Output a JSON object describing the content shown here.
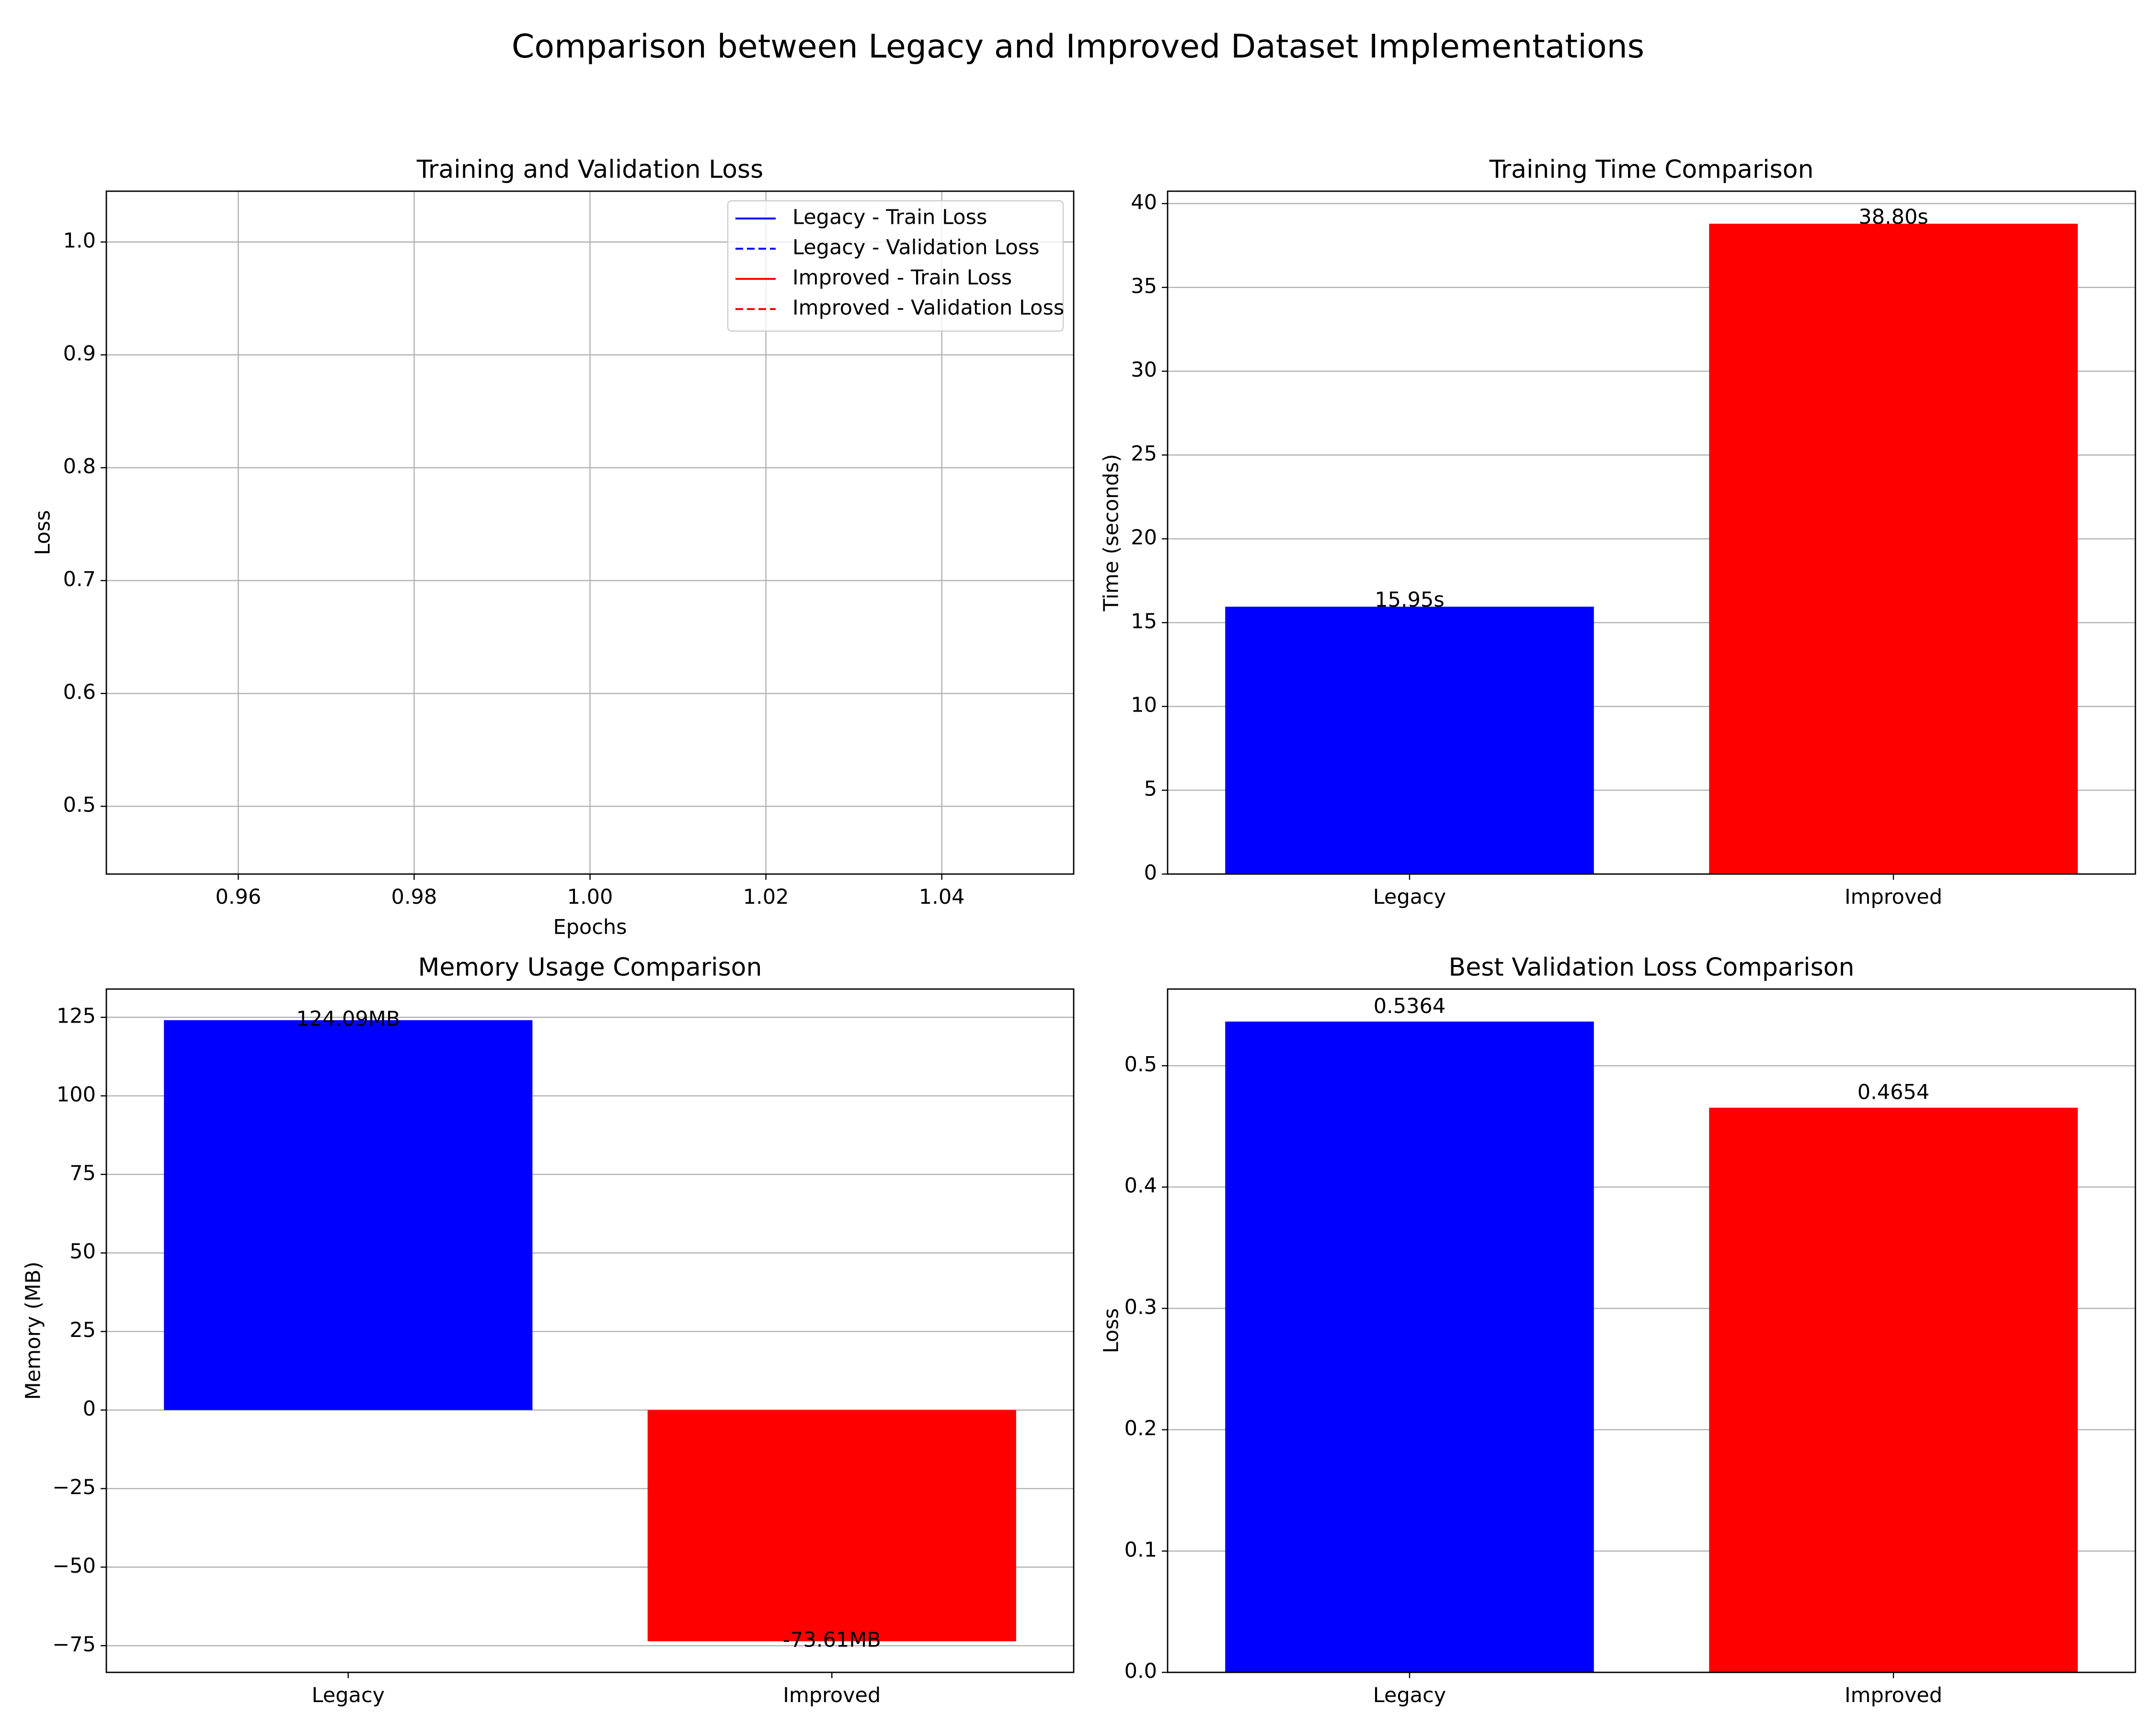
{
  "figure": {
    "suptitle": "Comparison between Legacy and Improved Dataset Implementations"
  },
  "colors": {
    "legacy": "#0000ff",
    "improved": "#ff0000",
    "grid": "#b0b0b0"
  },
  "chart_data": [
    {
      "id": "loss",
      "type": "line",
      "title": "Training and Validation Loss",
      "xlabel": "Epochs",
      "ylabel": "Loss",
      "xlim": [
        0.945,
        1.055
      ],
      "ylim": [
        0.44,
        1.045
      ],
      "xticks": [
        0.96,
        0.98,
        1.0,
        1.02,
        1.04
      ],
      "xtick_labels": [
        "0.96",
        "0.98",
        "1.00",
        "1.02",
        "1.04"
      ],
      "yticks": [
        0.5,
        0.6,
        0.7,
        0.8,
        0.9,
        1.0
      ],
      "ytick_labels": [
        "0.5",
        "0.6",
        "0.7",
        "0.8",
        "0.9",
        "1.0"
      ],
      "grid": true,
      "legend_position": "top-right",
      "series": [
        {
          "name": "Legacy - Train Loss",
          "color": "#0000ff",
          "style": "solid",
          "x": [],
          "y": []
        },
        {
          "name": "Legacy - Validation Loss",
          "color": "#0000ff",
          "style": "dashed",
          "x": [],
          "y": []
        },
        {
          "name": "Improved - Train Loss",
          "color": "#ff0000",
          "style": "solid",
          "x": [],
          "y": []
        },
        {
          "name": "Improved - Validation Loss",
          "color": "#ff0000",
          "style": "dashed",
          "x": [],
          "y": []
        }
      ]
    },
    {
      "id": "time",
      "type": "bar",
      "title": "Training Time Comparison",
      "xlabel": "",
      "ylabel": "Time (seconds)",
      "categories": [
        "Legacy",
        "Improved"
      ],
      "values": [
        15.95,
        38.8
      ],
      "value_labels": [
        "15.95s",
        "38.80s"
      ],
      "label_placement": "top",
      "colors": [
        "#0000ff",
        "#ff0000"
      ],
      "ylim": [
        0,
        40.74
      ],
      "yticks": [
        0,
        5,
        10,
        15,
        20,
        25,
        30,
        35,
        40
      ],
      "ytick_labels": [
        "0",
        "5",
        "10",
        "15",
        "20",
        "25",
        "30",
        "35",
        "40"
      ],
      "grid": true
    },
    {
      "id": "memory",
      "type": "bar",
      "title": "Memory Usage Comparison",
      "xlabel": "",
      "ylabel": "Memory (MB)",
      "categories": [
        "Legacy",
        "Improved"
      ],
      "values": [
        124.09,
        -73.61
      ],
      "value_labels": [
        "124.09MB",
        "-73.61MB"
      ],
      "label_placement": "at-value",
      "colors": [
        "#0000ff",
        "#ff0000"
      ],
      "ylim": [
        -83.5,
        134
      ],
      "yticks": [
        -75,
        -50,
        -25,
        0,
        25,
        50,
        75,
        100,
        125
      ],
      "ytick_labels": [
        "−75",
        "−50",
        "−25",
        "0",
        "25",
        "50",
        "75",
        "100",
        "125"
      ],
      "grid": true
    },
    {
      "id": "bestval",
      "type": "bar",
      "title": "Best Validation Loss Comparison",
      "xlabel": "",
      "ylabel": "Loss",
      "categories": [
        "Legacy",
        "Improved"
      ],
      "values": [
        0.5364,
        0.4654
      ],
      "value_labels": [
        "0.5364",
        "0.4654"
      ],
      "label_placement": "above",
      "colors": [
        "#0000ff",
        "#ff0000"
      ],
      "ylim": [
        0,
        0.5632
      ],
      "yticks": [
        0.0,
        0.1,
        0.2,
        0.3,
        0.4,
        0.5
      ],
      "ytick_labels": [
        "0.0",
        "0.1",
        "0.2",
        "0.3",
        "0.4",
        "0.5"
      ],
      "grid": true
    }
  ]
}
